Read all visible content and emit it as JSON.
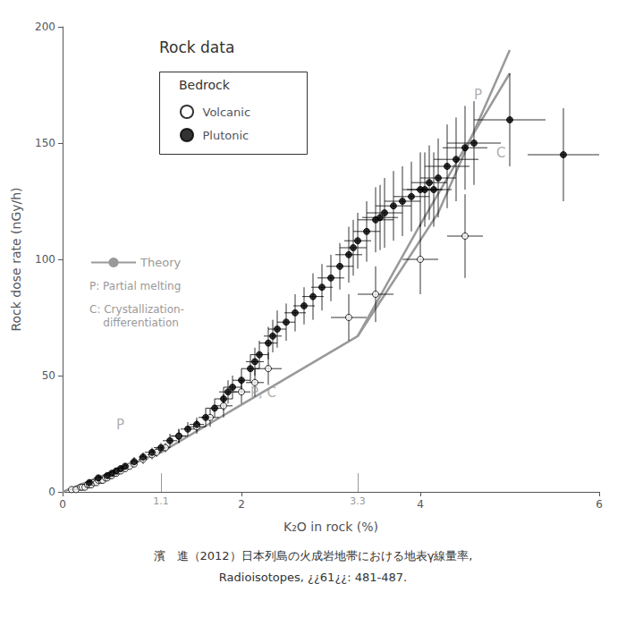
{
  "chart_data": {
    "type": "scatter",
    "title": "Rock data",
    "xlabel": "K₂O in rock (%)",
    "ylabel": "Rock dose rate (nGy/h)",
    "xlim": [
      0,
      6
    ],
    "ylim": [
      0,
      200
    ],
    "xticks": [
      0,
      2,
      4,
      6
    ],
    "yticks": [
      0,
      50,
      100,
      150,
      200
    ],
    "grid": false,
    "series": [
      {
        "name": "Theory",
        "type": "line",
        "color": "#999999",
        "x": [
          0.0,
          1.1,
          3.3,
          4.2,
          5.0
        ],
        "values": [
          0,
          17,
          67,
          120,
          190
        ]
      },
      {
        "name": "Theory",
        "type": "line",
        "color": "#999999",
        "x": [
          3.3,
          4.0,
          4.5,
          5.0
        ],
        "values": [
          67,
          115,
          148,
          180
        ]
      },
      {
        "name": "Volcanic",
        "type": "scatter",
        "color": "#000000",
        "marker": "circle-open",
        "x": [
          0.1,
          0.15,
          0.2,
          0.22,
          0.25,
          0.28,
          0.3,
          0.32,
          0.35,
          0.38,
          0.4,
          0.43,
          0.45,
          0.48,
          0.5,
          0.53,
          0.55,
          0.58,
          0.6,
          0.62,
          0.65,
          0.7,
          0.75,
          0.8,
          0.9,
          1.0,
          1.05,
          1.15,
          1.3,
          1.5,
          1.65,
          1.8,
          2.0,
          2.15,
          2.3,
          3.2,
          3.5,
          4.0,
          4.5
        ],
        "values": [
          1,
          1,
          2,
          2,
          2,
          3,
          3,
          3,
          4,
          4,
          5,
          5,
          5,
          6,
          6,
          7,
          7,
          8,
          8,
          9,
          9,
          10,
          11,
          12,
          14,
          16,
          17,
          19,
          24,
          28,
          32,
          37,
          43,
          47,
          53,
          75,
          85,
          100,
          110
        ],
        "xerr": [
          0.03,
          0.03,
          0.03,
          0.03,
          0.03,
          0.03,
          0.03,
          0.03,
          0.03,
          0.03,
          0.03,
          0.03,
          0.03,
          0.03,
          0.03,
          0.03,
          0.03,
          0.03,
          0.03,
          0.03,
          0.03,
          0.03,
          0.03,
          0.03,
          0.05,
          0.05,
          0.05,
          0.05,
          0.1,
          0.1,
          0.1,
          0.1,
          0.1,
          0.1,
          0.15,
          0.2,
          0.2,
          0.2,
          0.2
        ],
        "yerr": [
          0.5,
          0.5,
          0.5,
          0.5,
          0.5,
          0.5,
          0.5,
          0.5,
          0.5,
          0.5,
          0.5,
          0.5,
          0.5,
          0.5,
          0.5,
          0.5,
          1,
          1,
          1,
          1,
          1,
          1,
          1,
          1,
          2,
          2,
          2,
          2,
          3,
          3,
          4,
          5,
          5,
          6,
          7,
          10,
          12,
          15,
          18
        ]
      },
      {
        "name": "Plutonic",
        "type": "scatter",
        "color": "#000000",
        "marker": "circle",
        "x": [
          0.3,
          0.4,
          0.5,
          0.55,
          0.6,
          0.65,
          0.7,
          0.8,
          0.9,
          1.0,
          1.1,
          1.2,
          1.3,
          1.4,
          1.5,
          1.6,
          1.7,
          1.8,
          1.85,
          1.9,
          2.0,
          2.1,
          2.15,
          2.2,
          2.3,
          2.35,
          2.4,
          2.5,
          2.6,
          2.7,
          2.8,
          2.9,
          3.0,
          3.1,
          3.2,
          3.25,
          3.3,
          3.4,
          3.5,
          3.55,
          3.6,
          3.7,
          3.8,
          3.9,
          4.0,
          4.05,
          4.1,
          4.15,
          4.2,
          4.3,
          4.4,
          4.5,
          4.6,
          5.0,
          5.6
        ],
        "values": [
          4,
          6,
          7,
          8,
          9,
          10,
          11,
          13,
          15,
          17,
          19,
          22,
          24,
          27,
          29,
          32,
          36,
          40,
          43,
          45,
          48,
          53,
          56,
          59,
          64,
          67,
          70,
          73,
          77,
          80,
          84,
          88,
          92,
          97,
          102,
          105,
          108,
          112,
          117,
          118,
          120,
          123,
          125,
          127,
          130,
          130,
          133,
          130,
          135,
          140,
          143,
          148,
          150,
          160,
          145
        ],
        "xerr": [
          0.05,
          0.05,
          0.05,
          0.05,
          0.05,
          0.05,
          0.05,
          0.05,
          0.05,
          0.08,
          0.08,
          0.08,
          0.08,
          0.08,
          0.08,
          0.08,
          0.1,
          0.1,
          0.1,
          0.1,
          0.1,
          0.1,
          0.1,
          0.1,
          0.1,
          0.1,
          0.1,
          0.1,
          0.12,
          0.12,
          0.12,
          0.12,
          0.15,
          0.15,
          0.15,
          0.15,
          0.15,
          0.15,
          0.2,
          0.2,
          0.2,
          0.2,
          0.2,
          0.2,
          0.2,
          0.2,
          0.2,
          0.2,
          0.2,
          0.25,
          0.25,
          0.25,
          0.3,
          0.4,
          0.4
        ],
        "yerr": [
          1,
          1,
          1,
          1,
          1,
          1,
          1,
          2,
          2,
          2,
          2,
          3,
          3,
          3,
          3,
          4,
          4,
          5,
          5,
          5,
          5,
          6,
          6,
          6,
          7,
          7,
          8,
          8,
          8,
          8,
          10,
          10,
          10,
          10,
          12,
          12,
          12,
          13,
          14,
          14,
          15,
          15,
          15,
          15,
          16,
          16,
          16,
          16,
          17,
          18,
          18,
          18,
          18,
          20,
          20
        ]
      }
    ],
    "annotations": [
      {
        "text": "P",
        "x": 4.6,
        "y": 168,
        "color": "#999999"
      },
      {
        "text": "C",
        "x": 4.85,
        "y": 143,
        "color": "#999999"
      },
      {
        "text": "P",
        "x": 0.6,
        "y": 26,
        "color": "#999999"
      },
      {
        "text": "P, C",
        "x": 2.1,
        "y": 40,
        "color": "#999999"
      }
    ],
    "reference_x": [
      1.1,
      3.3
    ],
    "legend_title": "Bedrock",
    "notes": [
      "P: Partial melting",
      "C: Crystallization-\n    differentiation"
    ],
    "caption": [
      "濱　進（2012）日本列島の火成岩地帯における地表γ線量率,",
      "Radioisotopes, ¿¿61¿¿: 481-487."
    ]
  }
}
